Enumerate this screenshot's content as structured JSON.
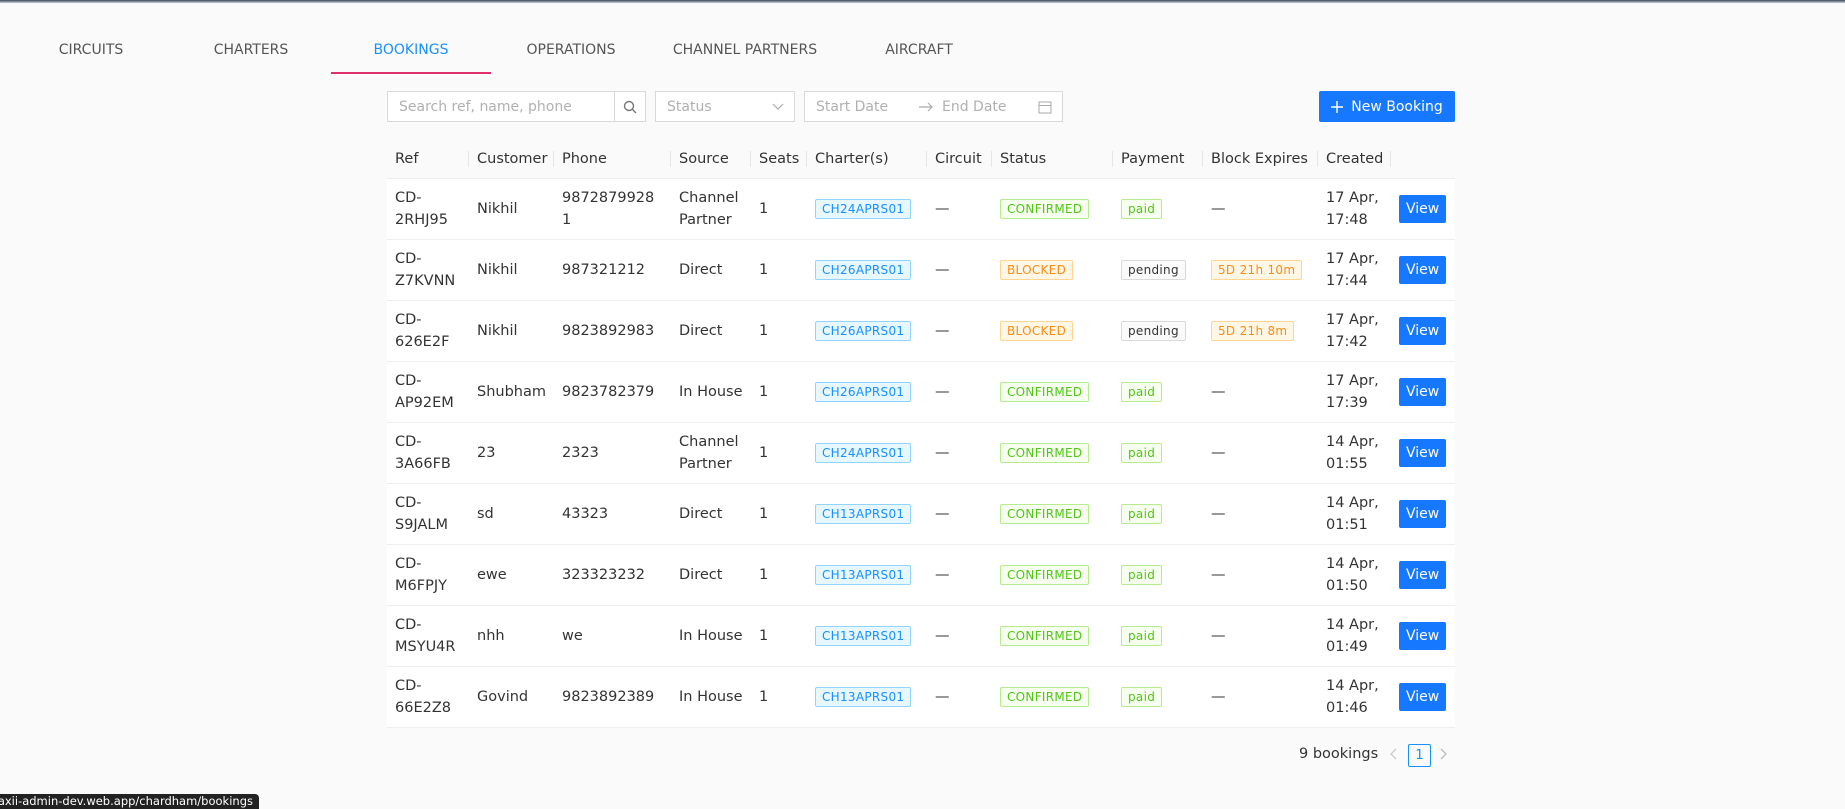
{
  "tabs": [
    "CIRCUITS",
    "CHARTERS",
    "BOOKINGS",
    "OPERATIONS",
    "CHANNEL PARTNERS",
    "AIRCRAFT"
  ],
  "active_tab": 2,
  "filters": {
    "search_placeholder": "Search ref, name, phone",
    "status_placeholder": "Status",
    "start_date_placeholder": "Start Date",
    "end_date_placeholder": "End Date"
  },
  "new_button": "New Booking",
  "table": {
    "headers": [
      "Ref",
      "Customer",
      "Phone",
      "Source",
      "Seats",
      "Charter(s)",
      "Circuit",
      "Status",
      "Payment",
      "Block Expires",
      "Created"
    ],
    "action_label": "View",
    "tag_colors": {
      "CONFIRMED": "green",
      "BLOCKED": "orange",
      "paid": "green",
      "pending": "gray"
    },
    "rows": [
      [
        "CD-2RHJ95",
        "Nikhil",
        "98728799281",
        "Channel Partner",
        1,
        "CH24APRS01",
        "—",
        "CONFIRMED",
        "paid",
        "—",
        "17 Apr, 17:48"
      ],
      [
        "CD-Z7KVNN",
        "Nikhil",
        "987321212",
        "Direct",
        1,
        "CH26APRS01",
        "—",
        "BLOCKED",
        "pending",
        "5D 21h 10m",
        "17 Apr, 17:44"
      ],
      [
        "CD-626E2F",
        "Nikhil",
        "9823892983",
        "Direct",
        1,
        "CH26APRS01",
        "—",
        "BLOCKED",
        "pending",
        "5D 21h 8m",
        "17 Apr, 17:42"
      ],
      [
        "CD-AP92EM",
        "Shubham",
        "9823782379",
        "In House",
        1,
        "CH26APRS01",
        "—",
        "CONFIRMED",
        "paid",
        "—",
        "17 Apr, 17:39"
      ],
      [
        "CD-3A66FB",
        "23",
        "2323",
        "Channel Partner",
        1,
        "CH24APRS01",
        "—",
        "CONFIRMED",
        "paid",
        "—",
        "14 Apr, 01:55"
      ],
      [
        "CD-S9JALM",
        "sd",
        "43323",
        "Direct",
        1,
        "CH13APRS01",
        "—",
        "CONFIRMED",
        "paid",
        "—",
        "14 Apr, 01:51"
      ],
      [
        "CD-M6FPJY",
        "ewe",
        "323323232",
        "Direct",
        1,
        "CH13APRS01",
        "—",
        "CONFIRMED",
        "paid",
        "—",
        "14 Apr, 01:50"
      ],
      [
        "CD-MSYU4R",
        "nhh",
        "we",
        "In House",
        1,
        "CH13APRS01",
        "—",
        "CONFIRMED",
        "paid",
        "—",
        "14 Apr, 01:49"
      ],
      [
        "CD-66E2Z8",
        "Govind",
        "9823892389",
        "In House",
        1,
        "CH13APRS01",
        "—",
        "CONFIRMED",
        "paid",
        "—",
        "14 Apr, 01:46"
      ]
    ]
  },
  "footer": {
    "total": "9 bookings",
    "page": "1"
  },
  "status_bar": "axii-admin-dev.web.app/chardham/bookings"
}
